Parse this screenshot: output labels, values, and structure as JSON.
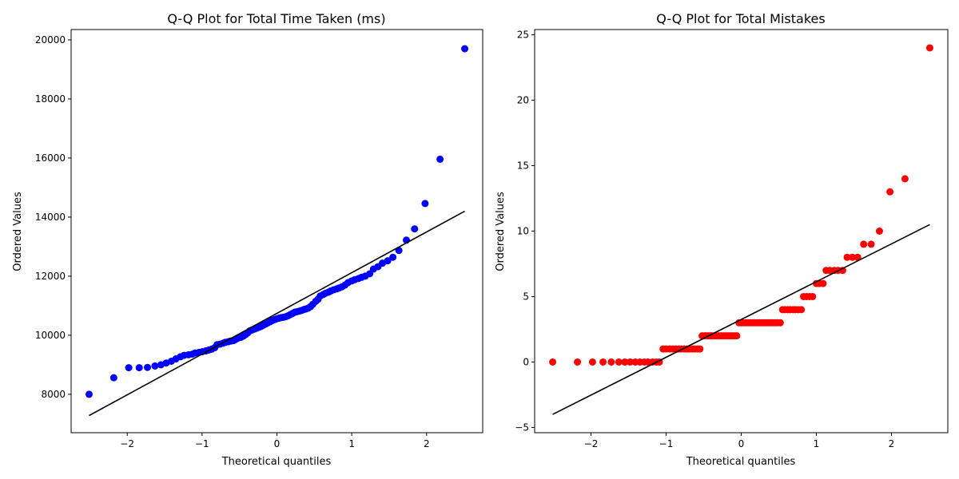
{
  "chart_data": [
    {
      "type": "scatter",
      "title": "Q-Q Plot for Total Time Taken (ms)",
      "xlabel": "Theoretical quantiles",
      "ylabel": "Ordered Values",
      "xlim": [
        -2.75,
        2.75
      ],
      "ylim": [
        6700,
        20350
      ],
      "xticks": [
        -2,
        -1,
        0,
        1,
        2
      ],
      "xtick_labels": [
        "−2",
        "−1",
        "0",
        "1",
        "2"
      ],
      "yticks": [
        8000,
        10000,
        12000,
        14000,
        16000,
        18000,
        20000
      ],
      "ytick_labels": [
        "8000",
        "10000",
        "12000",
        "14000",
        "16000",
        "18000",
        "20000"
      ],
      "grid": false,
      "marker_color": "#0000ff",
      "line_color": "#000000",
      "fit_line": {
        "x": [
          -2.51,
          2.51
        ],
        "y": [
          7280,
          14200
        ]
      },
      "points": [
        [
          -2.51,
          8000
        ],
        [
          -2.18,
          8560
        ],
        [
          -1.98,
          8900
        ],
        [
          -1.84,
          8900
        ],
        [
          -1.73,
          8910
        ],
        [
          -1.63,
          8960
        ],
        [
          -1.55,
          9000
        ],
        [
          -1.48,
          9060
        ],
        [
          -1.41,
          9120
        ],
        [
          -1.35,
          9200
        ],
        [
          -1.29,
          9270
        ],
        [
          -1.24,
          9320
        ],
        [
          -1.18,
          9340
        ],
        [
          -1.13,
          9360
        ],
        [
          -1.09,
          9400
        ],
        [
          -1.04,
          9420
        ],
        [
          -1.0,
          9440
        ],
        [
          -0.95,
          9470
        ],
        [
          -0.91,
          9500
        ],
        [
          -0.87,
          9530
        ],
        [
          -0.83,
          9580
        ],
        [
          -0.8,
          9680
        ],
        [
          -0.76,
          9700
        ],
        [
          -0.72,
          9730
        ],
        [
          -0.69,
          9760
        ],
        [
          -0.65,
          9780
        ],
        [
          -0.62,
          9800
        ],
        [
          -0.58,
          9820
        ],
        [
          -0.55,
          9860
        ],
        [
          -0.52,
          9900
        ],
        [
          -0.48,
          9930
        ],
        [
          -0.45,
          9970
        ],
        [
          -0.42,
          10020
        ],
        [
          -0.39,
          10080
        ],
        [
          -0.36,
          10150
        ],
        [
          -0.33,
          10180
        ],
        [
          -0.3,
          10210
        ],
        [
          -0.27,
          10240
        ],
        [
          -0.24,
          10270
        ],
        [
          -0.21,
          10300
        ],
        [
          -0.18,
          10340
        ],
        [
          -0.15,
          10380
        ],
        [
          -0.12,
          10420
        ],
        [
          -0.09,
          10460
        ],
        [
          -0.06,
          10500
        ],
        [
          -0.03,
          10530
        ],
        [
          0.0,
          10560
        ],
        [
          0.03,
          10580
        ],
        [
          0.06,
          10600
        ],
        [
          0.09,
          10610
        ],
        [
          0.12,
          10630
        ],
        [
          0.15,
          10660
        ],
        [
          0.18,
          10700
        ],
        [
          0.21,
          10740
        ],
        [
          0.24,
          10780
        ],
        [
          0.27,
          10800
        ],
        [
          0.3,
          10820
        ],
        [
          0.33,
          10840
        ],
        [
          0.36,
          10870
        ],
        [
          0.39,
          10890
        ],
        [
          0.42,
          10920
        ],
        [
          0.45,
          10970
        ],
        [
          0.48,
          11050
        ],
        [
          0.52,
          11150
        ],
        [
          0.55,
          11220
        ],
        [
          0.58,
          11330
        ],
        [
          0.62,
          11380
        ],
        [
          0.65,
          11420
        ],
        [
          0.69,
          11460
        ],
        [
          0.72,
          11500
        ],
        [
          0.76,
          11540
        ],
        [
          0.8,
          11570
        ],
        [
          0.83,
          11600
        ],
        [
          0.87,
          11640
        ],
        [
          0.91,
          11700
        ],
        [
          0.95,
          11780
        ],
        [
          1.0,
          11840
        ],
        [
          1.04,
          11880
        ],
        [
          1.09,
          11920
        ],
        [
          1.13,
          11960
        ],
        [
          1.18,
          12000
        ],
        [
          1.24,
          12080
        ],
        [
          1.29,
          12240
        ],
        [
          1.35,
          12320
        ],
        [
          1.41,
          12440
        ],
        [
          1.48,
          12520
        ],
        [
          1.55,
          12640
        ],
        [
          1.63,
          12870
        ],
        [
          1.73,
          13220
        ],
        [
          1.84,
          13600
        ],
        [
          1.98,
          14460
        ],
        [
          2.18,
          15960
        ],
        [
          2.51,
          19700
        ]
      ]
    },
    {
      "type": "scatter",
      "title": "Q-Q Plot for Total Mistakes",
      "xlabel": "Theoretical quantiles",
      "ylabel": "Ordered Values",
      "xlim": [
        -2.75,
        2.75
      ],
      "ylim": [
        -5.4,
        25.4
      ],
      "xticks": [
        -2,
        -1,
        0,
        1,
        2
      ],
      "xtick_labels": [
        "−2",
        "−1",
        "0",
        "1",
        "2"
      ],
      "yticks": [
        -5,
        0,
        5,
        10,
        15,
        20,
        25
      ],
      "ytick_labels": [
        "−5",
        "0",
        "5",
        "10",
        "15",
        "20",
        "25"
      ],
      "grid": false,
      "marker_color": "#ff0000",
      "line_color": "#000000",
      "fit_line": {
        "x": [
          -2.51,
          2.51
        ],
        "y": [
          -4.0,
          10.5
        ]
      },
      "points": [
        [
          -2.51,
          0
        ],
        [
          -2.18,
          0
        ],
        [
          -1.98,
          0
        ],
        [
          -1.84,
          0
        ],
        [
          -1.73,
          0
        ],
        [
          -1.63,
          0
        ],
        [
          -1.55,
          0
        ],
        [
          -1.48,
          0
        ],
        [
          -1.41,
          0
        ],
        [
          -1.35,
          0
        ],
        [
          -1.29,
          0
        ],
        [
          -1.24,
          0
        ],
        [
          -1.18,
          0
        ],
        [
          -1.13,
          0
        ],
        [
          -1.09,
          0
        ],
        [
          -1.04,
          1
        ],
        [
          -1.0,
          1
        ],
        [
          -0.95,
          1
        ],
        [
          -0.91,
          1
        ],
        [
          -0.87,
          1
        ],
        [
          -0.83,
          1
        ],
        [
          -0.8,
          1
        ],
        [
          -0.76,
          1
        ],
        [
          -0.72,
          1
        ],
        [
          -0.69,
          1
        ],
        [
          -0.65,
          1
        ],
        [
          -0.62,
          1
        ],
        [
          -0.58,
          1
        ],
        [
          -0.55,
          1
        ],
        [
          -0.52,
          2
        ],
        [
          -0.48,
          2
        ],
        [
          -0.45,
          2
        ],
        [
          -0.42,
          2
        ],
        [
          -0.39,
          2
        ],
        [
          -0.36,
          2
        ],
        [
          -0.33,
          2
        ],
        [
          -0.3,
          2
        ],
        [
          -0.27,
          2
        ],
        [
          -0.24,
          2
        ],
        [
          -0.21,
          2
        ],
        [
          -0.18,
          2
        ],
        [
          -0.15,
          2
        ],
        [
          -0.12,
          2
        ],
        [
          -0.09,
          2
        ],
        [
          -0.06,
          2
        ],
        [
          -0.03,
          3
        ],
        [
          0.0,
          3
        ],
        [
          0.03,
          3
        ],
        [
          0.06,
          3
        ],
        [
          0.09,
          3
        ],
        [
          0.12,
          3
        ],
        [
          0.15,
          3
        ],
        [
          0.18,
          3
        ],
        [
          0.21,
          3
        ],
        [
          0.24,
          3
        ],
        [
          0.27,
          3
        ],
        [
          0.3,
          3
        ],
        [
          0.33,
          3
        ],
        [
          0.36,
          3
        ],
        [
          0.39,
          3
        ],
        [
          0.42,
          3
        ],
        [
          0.45,
          3
        ],
        [
          0.48,
          3
        ],
        [
          0.52,
          3
        ],
        [
          0.55,
          4
        ],
        [
          0.58,
          4
        ],
        [
          0.62,
          4
        ],
        [
          0.65,
          4
        ],
        [
          0.69,
          4
        ],
        [
          0.72,
          4
        ],
        [
          0.76,
          4
        ],
        [
          0.8,
          4
        ],
        [
          0.83,
          5
        ],
        [
          0.87,
          5
        ],
        [
          0.91,
          5
        ],
        [
          0.95,
          5
        ],
        [
          1.0,
          6
        ],
        [
          1.04,
          6
        ],
        [
          1.09,
          6
        ],
        [
          1.13,
          7
        ],
        [
          1.18,
          7
        ],
        [
          1.24,
          7
        ],
        [
          1.29,
          7
        ],
        [
          1.35,
          7
        ],
        [
          1.41,
          8
        ],
        [
          1.48,
          8
        ],
        [
          1.55,
          8
        ],
        [
          1.63,
          9
        ],
        [
          1.73,
          9
        ],
        [
          1.84,
          10
        ],
        [
          1.98,
          13
        ],
        [
          2.18,
          14
        ],
        [
          2.51,
          24
        ]
      ]
    }
  ]
}
